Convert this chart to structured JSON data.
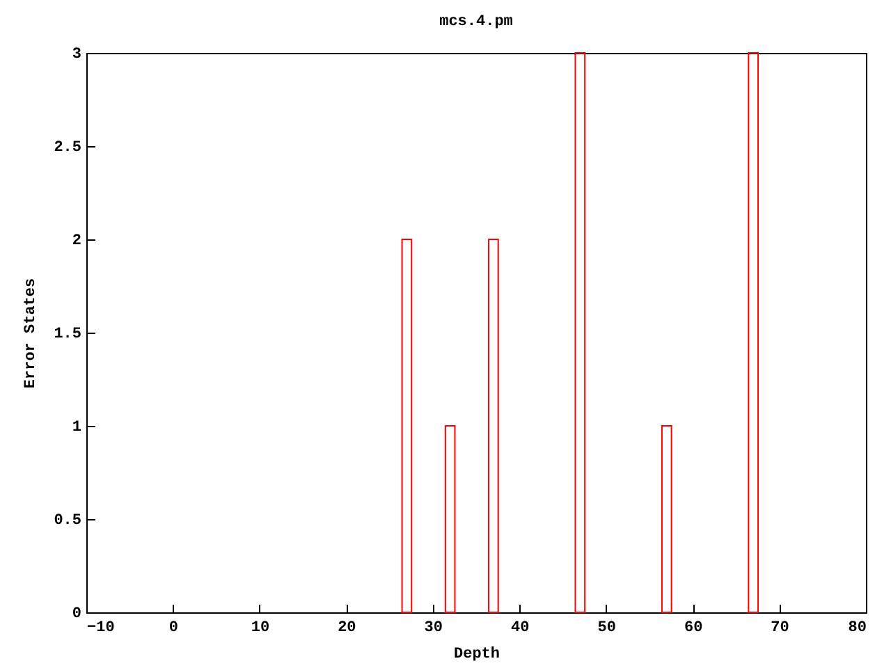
{
  "chart_data": {
    "type": "bar",
    "title": "mcs.4.pm",
    "xlabel": "Depth",
    "ylabel": "Error States",
    "x": [
      27,
      32,
      37,
      47,
      57,
      67
    ],
    "series": [
      {
        "color": "#ff0000",
        "values": [
          2,
          1,
          2,
          3,
          1,
          3
        ]
      }
    ],
    "xlim": [
      -10,
      80
    ],
    "xticks": [
      -10,
      0,
      10,
      20,
      30,
      40,
      50,
      60,
      70,
      80
    ],
    "ylim": [
      0,
      3
    ],
    "yticks": [
      0,
      0.5,
      1,
      1.5,
      2,
      2.5,
      3
    ],
    "grid": false
  }
}
